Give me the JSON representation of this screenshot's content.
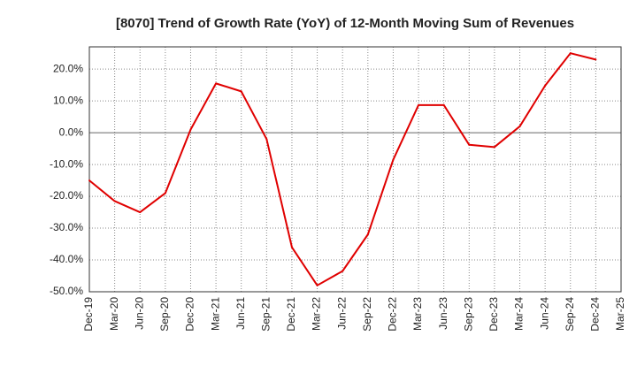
{
  "chart_data": {
    "type": "line",
    "title": "[8070]  Trend of Growth Rate (YoY) of 12-Month Moving Sum of Revenues",
    "xlabel": "",
    "ylabel": "",
    "x_ticks": [
      "Dec-19",
      "Mar-20",
      "Jun-20",
      "Sep-20",
      "Dec-20",
      "Mar-21",
      "Jun-21",
      "Sep-21",
      "Dec-21",
      "Mar-22",
      "Jun-22",
      "Sep-22",
      "Dec-22",
      "Mar-23",
      "Jun-23",
      "Sep-23",
      "Dec-23",
      "Mar-24",
      "Jun-24",
      "Sep-24",
      "Dec-24",
      "Mar-25"
    ],
    "y_ticks": [
      "20.0%",
      "10.0%",
      "0.0%",
      "-10.0%",
      "-20.0%",
      "-30.0%",
      "-40.0%",
      "-50.0%"
    ],
    "y_tick_values": [
      20,
      10,
      0,
      -10,
      -20,
      -30,
      -40,
      -50
    ],
    "ylim": [
      -50,
      27
    ],
    "grid": true,
    "zero_line": true,
    "series": [
      {
        "color": "#e00000",
        "x": [
          "Dec-19",
          "Mar-20",
          "Jun-20",
          "Sep-20",
          "Dec-20",
          "Mar-21",
          "Jun-21",
          "Sep-21",
          "Dec-21",
          "Mar-22",
          "Jun-22",
          "Sep-22",
          "Dec-22",
          "Mar-23",
          "Jun-23",
          "Sep-23",
          "Dec-23",
          "Mar-24",
          "Jun-24",
          "Sep-24",
          "Dec-24"
        ],
        "values": [
          -15.0,
          -21.5,
          -25.0,
          -19.0,
          1.0,
          15.5,
          13.0,
          -2.0,
          -36.0,
          -48.0,
          -43.5,
          -32.0,
          -8.5,
          8.7,
          8.7,
          -3.8,
          -4.5,
          2.0,
          14.8,
          25.0,
          23.0
        ]
      }
    ]
  }
}
